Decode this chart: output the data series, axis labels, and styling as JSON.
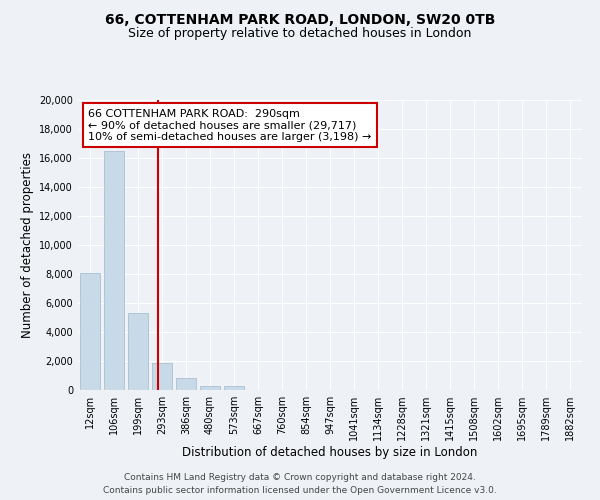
{
  "title": "66, COTTENHAM PARK ROAD, LONDON, SW20 0TB",
  "subtitle": "Size of property relative to detached houses in London",
  "xlabel": "Distribution of detached houses by size in London",
  "ylabel": "Number of detached properties",
  "bar_labels": [
    "12sqm",
    "106sqm",
    "199sqm",
    "293sqm",
    "386sqm",
    "480sqm",
    "573sqm",
    "667sqm",
    "760sqm",
    "854sqm",
    "947sqm",
    "1041sqm",
    "1134sqm",
    "1228sqm",
    "1321sqm",
    "1415sqm",
    "1508sqm",
    "1602sqm",
    "1695sqm",
    "1789sqm",
    "1882sqm"
  ],
  "bar_values": [
    8100,
    16500,
    5300,
    1850,
    800,
    300,
    270,
    0,
    0,
    0,
    0,
    0,
    0,
    0,
    0,
    0,
    0,
    0,
    0,
    0,
    0
  ],
  "bar_color": "#c8d9e8",
  "bar_edge_color": "#a0b8cc",
  "property_line_x": 2.85,
  "property_line_color": "#cc0000",
  "annotation_line1": "66 COTTENHAM PARK ROAD:  290sqm",
  "annotation_line2": "← 90% of detached houses are smaller (29,717)",
  "annotation_line3": "10% of semi-detached houses are larger (3,198) →",
  "annotation_box_color": "#ffffff",
  "annotation_box_edge": "#cc0000",
  "ylim": [
    0,
    20000
  ],
  "yticks": [
    0,
    2000,
    4000,
    6000,
    8000,
    10000,
    12000,
    14000,
    16000,
    18000,
    20000
  ],
  "background_color": "#eef2f7",
  "plot_bg_color": "#eef2f7",
  "footer_line1": "Contains HM Land Registry data © Crown copyright and database right 2024.",
  "footer_line2": "Contains public sector information licensed under the Open Government Licence v3.0.",
  "title_fontsize": 10,
  "subtitle_fontsize": 9,
  "axis_label_fontsize": 8.5,
  "tick_fontsize": 7,
  "annotation_fontsize": 8,
  "footer_fontsize": 6.5
}
